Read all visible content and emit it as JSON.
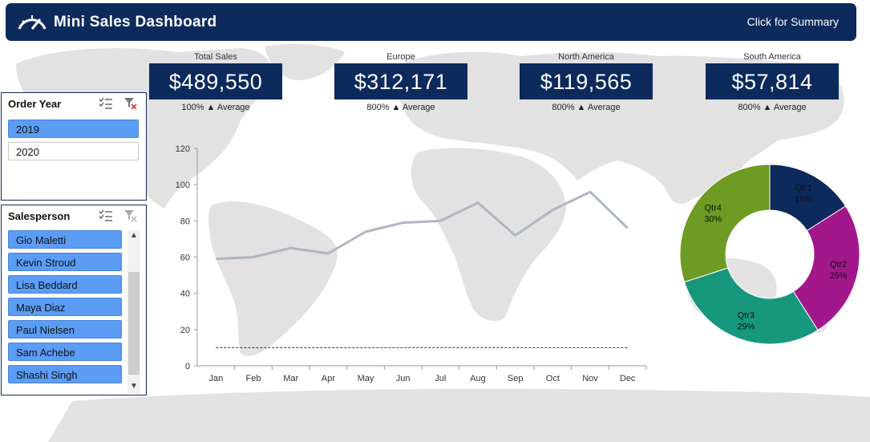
{
  "header": {
    "title": "Mini Sales Dashboard",
    "summary_link": "Click for Summary",
    "background": "#0d2a5c"
  },
  "kpis": [
    {
      "label": "Total Sales",
      "value": "$489,550",
      "sub": "100% ▲ Average"
    },
    {
      "label": "Europe",
      "value": "$312,171",
      "sub": "800% ▲ Average"
    },
    {
      "label": "North America",
      "value": "$119,565",
      "sub": "800% ▲ Average"
    },
    {
      "label": "South America",
      "value": "$57,814",
      "sub": "800% ▲ Average"
    }
  ],
  "order_year_slicer": {
    "title": "Order Year",
    "items": [
      {
        "label": "2019",
        "selected": true
      },
      {
        "label": "2020",
        "selected": false
      }
    ]
  },
  "salesperson_slicer": {
    "title": "Salesperson",
    "items": [
      "Gio Maletti",
      "Kevin Stroud",
      "Lisa Beddard",
      "Maya Diaz",
      "Paul Nielsen",
      "Sam Achebe",
      "Shashi Singh"
    ]
  },
  "chart_data": [
    {
      "type": "line",
      "categories": [
        "Jan",
        "Feb",
        "Mar",
        "Apr",
        "May",
        "Jun",
        "Jul",
        "Aug",
        "Sep",
        "Oct",
        "Nov",
        "Dec"
      ],
      "series": [
        {
          "values": [
            59,
            60,
            65,
            62,
            74,
            79,
            80,
            90,
            72,
            86,
            96,
            76
          ],
          "color": "#aeb6c3"
        },
        {
          "values": [
            10,
            10,
            10,
            10,
            10,
            10,
            10,
            10,
            10,
            10,
            10,
            10
          ],
          "color": "#333333",
          "style": "dashed"
        }
      ],
      "yticks": [
        "0",
        "20",
        "40",
        "60",
        "80",
        "100",
        "120"
      ],
      "ylim": [
        0,
        120
      ]
    },
    {
      "type": "pie",
      "style": "donut",
      "slices": [
        {
          "label": "Qtr1",
          "pct": "16%",
          "value": 16,
          "color": "#0d2a5c"
        },
        {
          "label": "Qtr2",
          "pct": "25%",
          "value": 25,
          "color": "#a3178c"
        },
        {
          "label": "Qtr3",
          "pct": "29%",
          "value": 29,
          "color": "#17977c"
        },
        {
          "label": "Qtr4",
          "pct": "30%",
          "value": 30,
          "color": "#6e9b23"
        }
      ]
    }
  ]
}
